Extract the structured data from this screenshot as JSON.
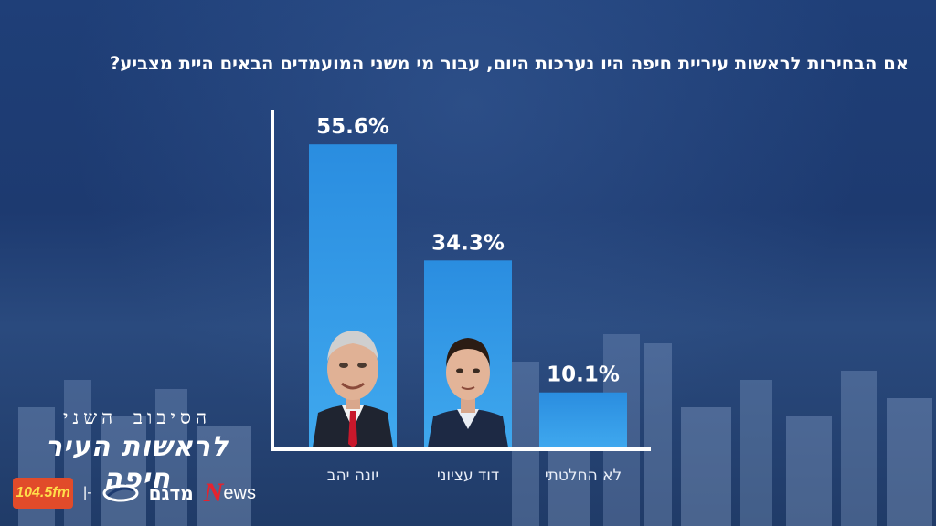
{
  "title": "אם הבחירות לראשות עיריית חיפה היו נערכות היום, עבור מי משני המועמדים הבאים היית מצביע?",
  "chart_data": {
    "type": "bar",
    "title": "אם הבחירות לראשות עיריית חיפה היו נערכות היום, עבור מי משני המועמדים הבאים היית מצביע?",
    "categories": [
      "יונה יהב",
      "דוד עציוני",
      "לא החלטתי"
    ],
    "values": [
      55.6,
      34.3,
      10.1
    ],
    "value_labels": [
      "55.6%",
      "34.3%",
      "10.1%"
    ],
    "ylim": [
      0,
      62
    ],
    "grid": false,
    "legend": "none"
  },
  "colors": {
    "bar_top": "#2a8de0",
    "bar_bottom": "#3fa8ee",
    "axis": "#ffffff",
    "background": "#1d3a70"
  },
  "branding": {
    "line1": "הסיבוב השני",
    "line2": "לראשות העיר חיפה",
    "logos": {
      "radio": "104.5fm",
      "separator": "|-",
      "madgam": "מדגם",
      "news_n": "N",
      "news_rest": "ews"
    }
  }
}
